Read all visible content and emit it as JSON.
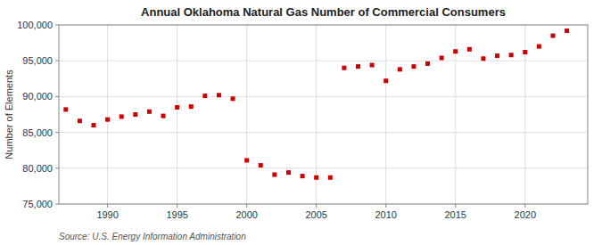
{
  "chart_data": {
    "type": "scatter",
    "title": "Annual Oklahoma Natural Gas Number of Commercial Consumers",
    "y_label": "Number of Elements",
    "annotations": [
      "Source: U.S. Energy Information Administration"
    ],
    "x": [
      1987,
      1988,
      1989,
      1990,
      1991,
      1992,
      1993,
      1994,
      1995,
      1996,
      1997,
      1998,
      1999,
      2000,
      2001,
      2002,
      2003,
      2004,
      2005,
      2006,
      2007,
      2008,
      2009,
      2010,
      2011,
      2012,
      2013,
      2014,
      2015,
      2016,
      2017,
      2018,
      2019,
      2020,
      2021,
      2022,
      2023
    ],
    "values": [
      88200,
      86600,
      86000,
      86800,
      87200,
      87500,
      87900,
      87300,
      88500,
      88600,
      90100,
      90200,
      89700,
      81100,
      80400,
      79100,
      79400,
      78900,
      78700,
      78700,
      94000,
      94200,
      94400,
      92200,
      93800,
      94200,
      94600,
      95400,
      96300,
      96600,
      95300,
      95700,
      95800,
      96200,
      97000,
      98500,
      99200
    ],
    "color": "#cc0000",
    "marker": "square",
    "xlim": [
      1986.5,
      2024.5
    ],
    "ylim": [
      75000,
      100000
    ],
    "xticks": [
      1990,
      1995,
      2000,
      2005,
      2010,
      2015,
      2020
    ],
    "yticks": [
      {
        "value": 75000,
        "label": "75,000"
      },
      {
        "value": 80000,
        "label": "80,000"
      },
      {
        "value": 85000,
        "label": "85,000"
      },
      {
        "value": 90000,
        "label": "90,000"
      },
      {
        "value": 95000,
        "label": "95,000"
      },
      {
        "value": 100000,
        "label": "100,000"
      }
    ],
    "grid": true
  }
}
